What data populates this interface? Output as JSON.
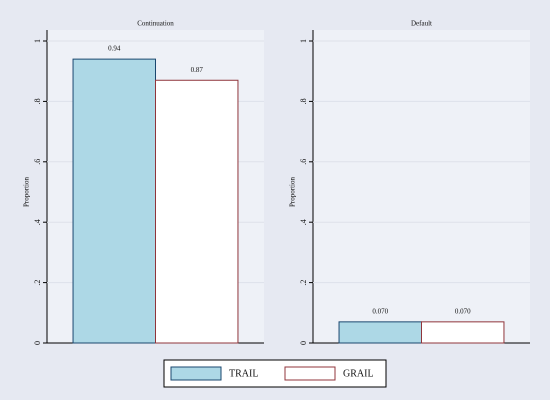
{
  "chart_data": [
    {
      "type": "bar",
      "title": "Continuation",
      "ylabel": "Proportion",
      "ylim": [
        0,
        1
      ],
      "yticks": [
        0,
        {
          "value": 0.2,
          "label": ".2"
        },
        {
          "value": 0.4,
          "label": ".4"
        },
        {
          "value": 0.6,
          "label": ".6"
        },
        {
          "value": 0.8,
          "label": ".8"
        },
        1
      ],
      "grid": true,
      "series": [
        {
          "name": "TRAIL",
          "color": "#add8e6",
          "edgecolor": "#1a476f",
          "values": [
            0.94
          ]
        },
        {
          "name": "GRAIL",
          "color": "#ffffff",
          "edgecolor": "#90353b",
          "values": [
            0.87
          ]
        }
      ]
    },
    {
      "type": "bar",
      "title": "Default",
      "ylabel": "Proportion",
      "ylim": [
        0,
        1
      ],
      "yticks": [
        0,
        {
          "value": 0.2,
          "label": ".2"
        },
        {
          "value": 0.4,
          "label": ".4"
        },
        {
          "value": 0.6,
          "label": ".6"
        },
        {
          "value": 0.8,
          "label": ".8"
        },
        1
      ],
      "grid": true,
      "series": [
        {
          "name": "TRAIL",
          "color": "#add8e6",
          "edgecolor": "#1a476f",
          "values": [
            0.07
          ],
          "value_labels": [
            "0.070"
          ]
        },
        {
          "name": "GRAIL",
          "color": "#ffffff",
          "edgecolor": "#90353b",
          "values": [
            0.07
          ],
          "value_labels": [
            "0.070"
          ]
        }
      ]
    }
  ]
}
